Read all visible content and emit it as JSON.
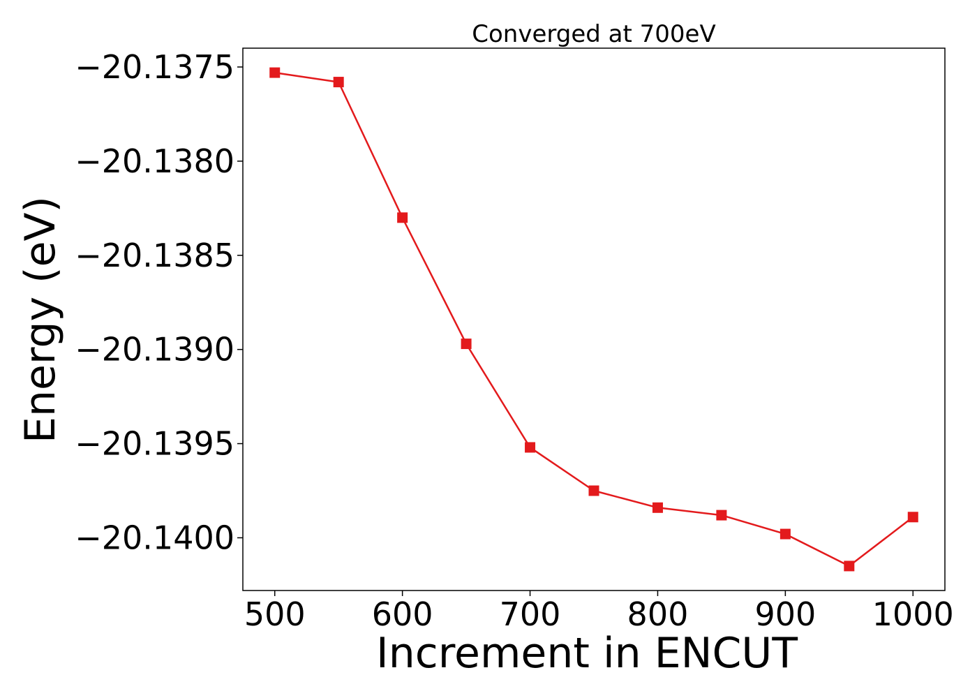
{
  "chart_data": {
    "type": "line",
    "title": "Converged at 700eV",
    "xlabel": "Increment in ENCUT",
    "ylabel": "Energy (eV)",
    "x": [
      500,
      550,
      600,
      650,
      700,
      750,
      800,
      850,
      900,
      950,
      1000
    ],
    "series": [
      {
        "values": [
          -20.13753,
          -20.13758,
          -20.1383,
          -20.13897,
          -20.13952,
          -20.13975,
          -20.13984,
          -20.13988,
          -20.13998,
          -20.14015,
          -20.13989
        ]
      }
    ],
    "xlim": [
      475,
      1025
    ],
    "ylim": [
      -20.14028,
      -20.1374
    ],
    "xticks": [
      500,
      600,
      700,
      800,
      900,
      1000
    ],
    "xtick_labels": [
      "500",
      "600",
      "700",
      "800",
      "900",
      "1000"
    ],
    "yticks": [
      -20.1375,
      -20.138,
      -20.1385,
      -20.139,
      -20.1395,
      -20.14
    ],
    "ytick_labels": [
      "−20.1375",
      "−20.1380",
      "−20.1385",
      "−20.1390",
      "−20.1395",
      "−20.1400"
    ],
    "grid": false,
    "marker": "square",
    "color": "#e31a1c"
  }
}
